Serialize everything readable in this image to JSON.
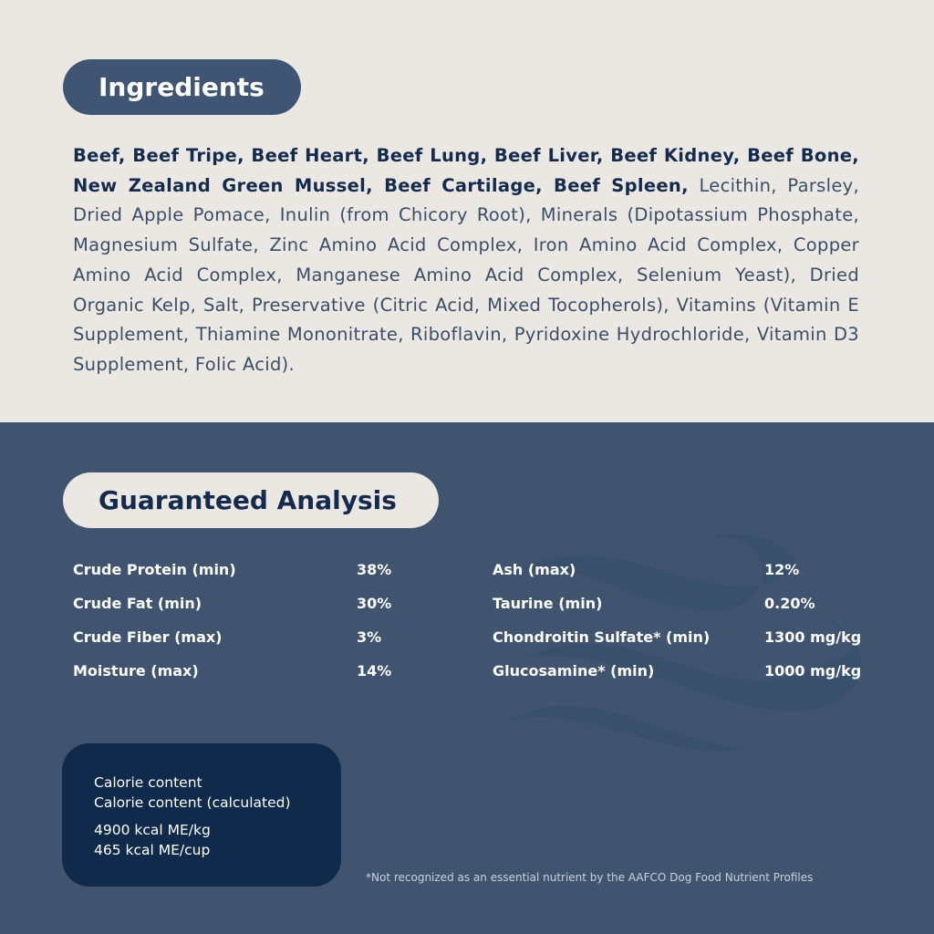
{
  "ingredients": {
    "title": "Ingredients",
    "bold_text": "Beef, Beef Tripe, Beef Heart, Beef Lung, Beef Liver, Beef Kidney, Beef Bone, New Zealand Green Mussel, Beef Cartilage, Beef Spleen,",
    "regular_text": " Lecithin, Parsley, Dried Apple Pomace, Inulin (from Chicory Root), Minerals (Dipotassium Phosphate, Magnesium Sulfate, Zinc Amino Acid Complex, Iron Amino Acid Complex, Copper Amino Acid Complex, Manganese Amino Acid Complex, Selenium Yeast), Dried Organic Kelp, Salt, Preservative (Citric Acid, Mixed Tocopherols), Vitamins (Vitamin E Supplement, Thiamine Mononitrate, Riboflavin, Pyridoxine Hydrochloride, Vitamin D3 Supplement, Folic Acid)."
  },
  "analysis": {
    "title": "Guaranteed Analysis",
    "left": [
      {
        "name": "Crude Protein (min)",
        "value": "38%"
      },
      {
        "name": "Crude Fat (min)",
        "value": "30%"
      },
      {
        "name": "Crude Fiber (max)",
        "value": "3%"
      },
      {
        "name": "Moisture (max)",
        "value": "14%"
      }
    ],
    "right": [
      {
        "name": "Ash (max)",
        "value": "12%"
      },
      {
        "name": "Taurine (min)",
        "value": "0.20%"
      },
      {
        "name": "Chondroitin Sulfate* (min)",
        "value": "1300 mg/kg"
      },
      {
        "name": "Glucosamine* (min)",
        "value": "1000 mg/kg"
      }
    ]
  },
  "calorie": {
    "line1": "Calorie content",
    "line2": "Calorie content (calculated)",
    "value1": "4900 kcal ME/kg",
    "value2": "465 kcal ME/cup"
  },
  "footnote": "*Not recognized as an essential nutrient by the AAFCO Dog Food Nutrient Profiles",
  "colors": {
    "top_bg": "#ebe8e4",
    "bottom_bg": "#40546f",
    "navy": "#102a4c",
    "pill": "#3f5573"
  }
}
